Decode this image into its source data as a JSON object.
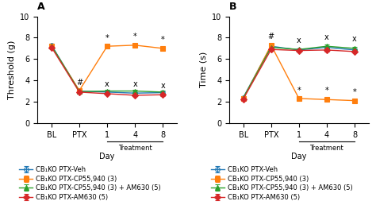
{
  "chart_data": [
    {
      "type": "line",
      "title": "A",
      "y_label": "Threshold (g)",
      "x_label": "Day",
      "categories": [
        "BL",
        "PTX",
        "1",
        "4",
        "8"
      ],
      "ylim": [
        0,
        10
      ],
      "yticks": [
        0,
        2,
        4,
        6,
        8,
        10
      ],
      "legend": "upper left",
      "series": [
        {
          "name": "CB₁KO PTX-Veh",
          "marker": "open circle",
          "values": [
            7.3,
            3.0,
            2.9,
            2.8,
            2.85
          ],
          "errors": [
            0.15,
            0.1,
            0.1,
            0.12,
            0.1
          ]
        },
        {
          "name": "CB₁KO PTX-CP55,940 (3)",
          "marker": "square",
          "values": [
            7.2,
            3.05,
            7.2,
            7.3,
            7.0
          ],
          "errors": [
            0.12,
            0.1,
            0.15,
            0.15,
            0.15
          ]
        },
        {
          "name": "CB₁KO PTX-CP55,940 (3) + AM630 (5)",
          "marker": "triangle",
          "values": [
            7.25,
            2.95,
            3.0,
            3.0,
            2.9
          ],
          "errors": [
            0.1,
            0.1,
            0.12,
            0.12,
            0.12
          ]
        },
        {
          "name": "CB₁KO PTX-AM630 (5)",
          "marker": "diamond",
          "values": [
            7.1,
            2.9,
            2.75,
            2.6,
            2.65
          ],
          "errors": [
            0.12,
            0.1,
            0.1,
            0.1,
            0.1
          ]
        }
      ],
      "annotations": [
        {
          "text": "#",
          "x": "PTX",
          "y": 3.4
        },
        {
          "text": "*",
          "x": "1",
          "y": 7.6
        },
        {
          "text": "*",
          "x": "4",
          "y": 7.7
        },
        {
          "text": "*",
          "x": "8",
          "y": 7.45
        },
        {
          "text": "x",
          "x": "1",
          "y": 3.3
        },
        {
          "text": "x",
          "x": "4",
          "y": 3.25
        },
        {
          "text": "x",
          "x": "8",
          "y": 3.15
        }
      ],
      "bracket": {
        "text": "Treatment",
        "from": "1",
        "to": "8"
      }
    },
    {
      "type": "line",
      "title": "B",
      "y_label": "Time (s)",
      "x_label": "Day",
      "categories": [
        "BL",
        "PTX",
        "1",
        "4",
        "8"
      ],
      "ylim": [
        0,
        10
      ],
      "yticks": [
        0,
        2,
        4,
        6,
        8,
        10
      ],
      "legend": "upper left",
      "series": [
        {
          "name": "CB₁KO PTX-Veh",
          "marker": "open circle",
          "values": [
            2.4,
            7.2,
            6.85,
            7.1,
            6.85
          ],
          "errors": [
            0.15,
            0.12,
            0.12,
            0.15,
            0.12
          ]
        },
        {
          "name": "CB₁KO PTX-CP55,940 (3)",
          "marker": "square",
          "values": [
            2.3,
            7.3,
            2.3,
            2.2,
            2.1
          ],
          "errors": [
            0.1,
            0.1,
            0.1,
            0.1,
            0.1
          ]
        },
        {
          "name": "CB₁KO PTX-CP55,940 (3) + AM630 (5)",
          "marker": "triangle",
          "values": [
            2.35,
            7.1,
            6.9,
            7.2,
            7.0
          ],
          "errors": [
            0.1,
            0.12,
            0.12,
            0.15,
            0.12
          ]
        },
        {
          "name": "CB₁KO PTX-AM630 (5)",
          "marker": "diamond",
          "values": [
            2.25,
            6.9,
            6.8,
            6.85,
            6.7
          ],
          "errors": [
            0.1,
            0.12,
            0.1,
            0.12,
            0.1
          ]
        }
      ],
      "annotations": [
        {
          "text": "#",
          "x": "PTX",
          "y": 7.75
        },
        {
          "text": "*",
          "x": "1",
          "y": 2.7
        },
        {
          "text": "*",
          "x": "4",
          "y": 2.65
        },
        {
          "text": "*",
          "x": "8",
          "y": 2.55
        },
        {
          "text": "x",
          "x": "1",
          "y": 7.35
        },
        {
          "text": "x",
          "x": "4",
          "y": 7.65
        },
        {
          "text": "x",
          "x": "8",
          "y": 7.5
        }
      ],
      "bracket": {
        "text": "Treatment",
        "from": "1",
        "to": "8"
      }
    }
  ]
}
